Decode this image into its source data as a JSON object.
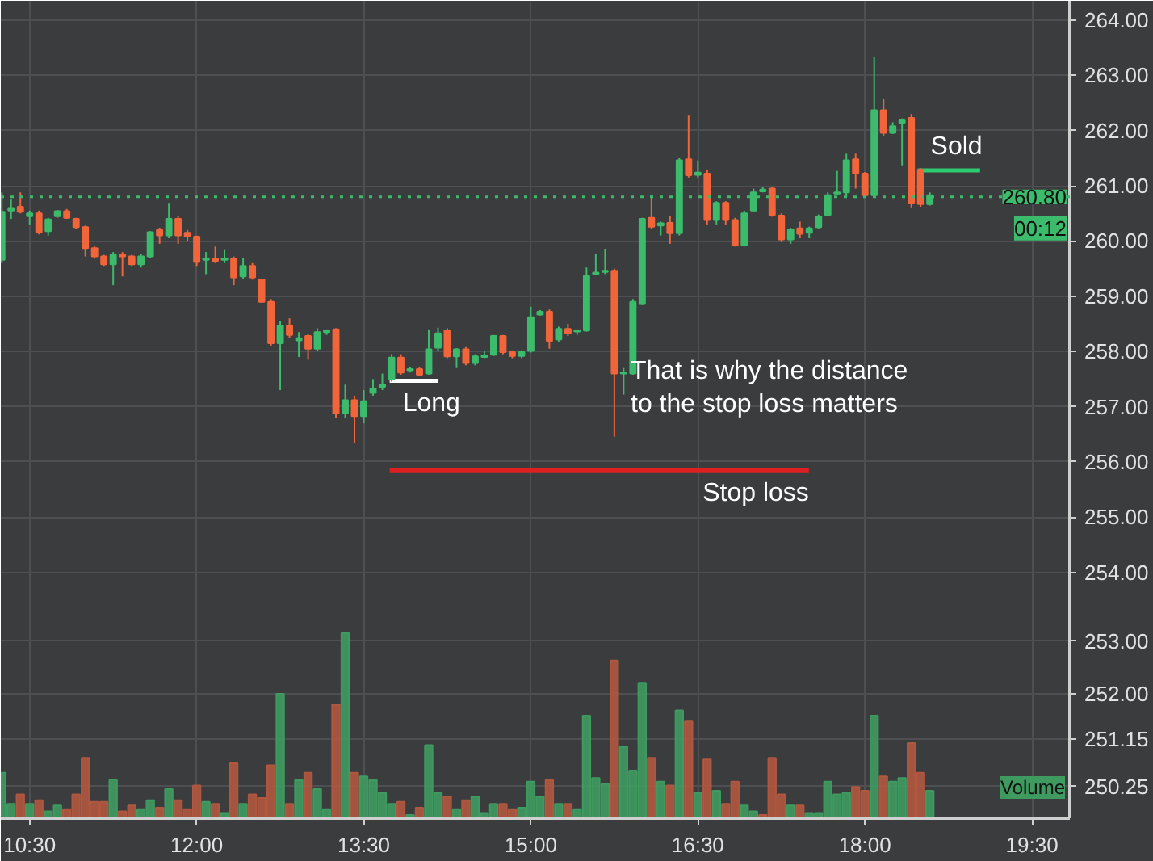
{
  "chart_data": {
    "type": "candlestick",
    "x": [
      10.25,
      10.3333,
      10.4167,
      10.5,
      10.5833,
      10.6667,
      10.75,
      10.8333,
      10.9167,
      11,
      11.0833,
      11.1667,
      11.25,
      11.3333,
      11.4167,
      11.5,
      11.5833,
      11.6667,
      11.75,
      11.8333,
      11.9167,
      12,
      12.0833,
      12.1667,
      12.25,
      12.3333,
      12.4167,
      12.5,
      12.5833,
      12.6667,
      12.75,
      12.8333,
      12.9167,
      13,
      13.0833,
      13.1667,
      13.25,
      13.3333,
      13.4167,
      13.5,
      13.5833,
      13.6667,
      13.75,
      13.8333,
      13.9167,
      14,
      14.0833,
      14.1667,
      14.25,
      14.3333,
      14.4167,
      14.5,
      14.5833,
      14.6667,
      14.75,
      14.8333,
      14.9167,
      15,
      15.0833,
      15.1667,
      15.25,
      15.3333,
      15.4167,
      15.5,
      15.5833,
      15.6667,
      15.75,
      15.8333,
      15.9167,
      16,
      16.0833,
      16.1667,
      16.25,
      16.3333,
      16.4167,
      16.5,
      16.5833,
      16.6667,
      16.75,
      16.8333,
      16.9167,
      17,
      17.0833,
      17.1667,
      17.25,
      17.3333,
      17.4167,
      17.5,
      17.5833,
      17.6667,
      17.75,
      17.8333,
      17.9167,
      18,
      18.0833,
      18.1667,
      18.25,
      18.3333,
      18.4167,
      18.5,
      18.5833
    ],
    "ohlc": [
      [
        259.66,
        260.88,
        259.6,
        260.53
      ],
      [
        260.55,
        260.75,
        260.4,
        260.6
      ],
      [
        260.62,
        260.88,
        260.5,
        260.53
      ],
      [
        260.45,
        260.55,
        260.3,
        260.5
      ],
      [
        260.5,
        260.55,
        260.12,
        260.16
      ],
      [
        260.18,
        260.42,
        260.1,
        260.39
      ],
      [
        260.45,
        260.56,
        260.42,
        260.54
      ],
      [
        260.54,
        260.58,
        260.4,
        260.42
      ],
      [
        260.4,
        260.42,
        260.22,
        260.25
      ],
      [
        260.25,
        260.28,
        259.72,
        259.87
      ],
      [
        259.87,
        259.9,
        259.68,
        259.72
      ],
      [
        259.72,
        259.75,
        259.55,
        259.58
      ],
      [
        259.58,
        259.8,
        259.2,
        259.75
      ],
      [
        259.75,
        259.8,
        259.36,
        259.72
      ],
      [
        259.72,
        259.75,
        259.55,
        259.58
      ],
      [
        259.58,
        259.76,
        259.52,
        259.72
      ],
      [
        259.72,
        260.18,
        259.7,
        260.16
      ],
      [
        260.2,
        260.24,
        259.95,
        260.1
      ],
      [
        260.1,
        260.69,
        260.05,
        260.4
      ],
      [
        260.4,
        260.45,
        259.95,
        260.1
      ],
      [
        260.15,
        260.2,
        260.0,
        260.08
      ],
      [
        260.08,
        260.1,
        259.55,
        259.62
      ],
      [
        259.66,
        259.8,
        259.4,
        259.68
      ],
      [
        259.68,
        259.9,
        259.6,
        259.64
      ],
      [
        259.66,
        259.85,
        259.6,
        259.68
      ],
      [
        259.68,
        259.72,
        259.2,
        259.34
      ],
      [
        259.36,
        259.7,
        259.32,
        259.55
      ],
      [
        259.55,
        259.6,
        259.3,
        259.34
      ],
      [
        259.3,
        259.32,
        258.88,
        258.9
      ],
      [
        258.9,
        258.95,
        258.1,
        258.15
      ],
      [
        258.15,
        258.55,
        257.3,
        258.47
      ],
      [
        258.47,
        258.6,
        258.25,
        258.3
      ],
      [
        258.2,
        258.35,
        257.9,
        258.24
      ],
      [
        258.28,
        258.32,
        257.85,
        258.05
      ],
      [
        258.05,
        258.42,
        258.0,
        258.35
      ],
      [
        258.35,
        258.4,
        258.3,
        258.38
      ],
      [
        258.4,
        258.42,
        256.8,
        256.88
      ],
      [
        256.88,
        257.4,
        256.8,
        257.12
      ],
      [
        257.12,
        257.2,
        256.35,
        256.83
      ],
      [
        256.83,
        257.3,
        256.7,
        257.1
      ],
      [
        257.25,
        257.5,
        257.2,
        257.33
      ],
      [
        257.36,
        257.6,
        257.3,
        257.4
      ],
      [
        257.5,
        257.95,
        257.45,
        257.89
      ],
      [
        257.89,
        257.95,
        257.58,
        257.62
      ],
      [
        257.66,
        257.72,
        257.62,
        257.68
      ],
      [
        257.68,
        257.72,
        257.55,
        257.58
      ],
      [
        257.6,
        258.4,
        257.58,
        258.04
      ],
      [
        258.07,
        258.43,
        258.0,
        258.33
      ],
      [
        258.38,
        258.42,
        257.88,
        257.91
      ],
      [
        257.91,
        258.06,
        257.7,
        258.04
      ],
      [
        258.04,
        258.08,
        257.75,
        257.79
      ],
      [
        257.79,
        257.95,
        257.75,
        257.91
      ],
      [
        257.9,
        258.0,
        257.88,
        257.93
      ],
      [
        257.94,
        258.3,
        257.92,
        258.28
      ],
      [
        258.28,
        258.3,
        257.95,
        257.99
      ],
      [
        257.99,
        258.02,
        257.88,
        257.92
      ],
      [
        257.92,
        258.02,
        257.88,
        257.99
      ],
      [
        258.01,
        258.81,
        257.98,
        258.62
      ],
      [
        258.67,
        258.75,
        258.65,
        258.72
      ],
      [
        258.72,
        258.76,
        258.05,
        258.19
      ],
      [
        258.22,
        258.45,
        258.18,
        258.41
      ],
      [
        258.41,
        258.5,
        258.28,
        258.33
      ],
      [
        258.36,
        258.4,
        258.3,
        258.38
      ],
      [
        258.38,
        259.52,
        258.36,
        259.37
      ],
      [
        259.4,
        259.76,
        259.38,
        259.43
      ],
      [
        259.44,
        259.86,
        259.4,
        259.46
      ],
      [
        259.46,
        259.5,
        256.46,
        257.6
      ],
      [
        257.6,
        257.7,
        257.22,
        257.62
      ],
      [
        257.6,
        258.95,
        257.58,
        258.9
      ],
      [
        258.86,
        260.42,
        258.84,
        260.4
      ],
      [
        260.42,
        260.83,
        260.22,
        260.26
      ],
      [
        260.28,
        260.35,
        260.1,
        260.32
      ],
      [
        260.33,
        260.45,
        259.95,
        260.14
      ],
      [
        260.14,
        261.5,
        260.1,
        261.46
      ],
      [
        261.48,
        262.27,
        261.15,
        261.19
      ],
      [
        261.2,
        261.46,
        261.15,
        261.24
      ],
      [
        261.22,
        261.28,
        260.3,
        260.38
      ],
      [
        260.38,
        260.72,
        260.3,
        260.69
      ],
      [
        260.69,
        260.72,
        260.3,
        260.38
      ],
      [
        260.38,
        260.42,
        259.9,
        259.92
      ],
      [
        259.92,
        260.55,
        259.9,
        260.5
      ],
      [
        260.55,
        260.95,
        260.52,
        260.88
      ],
      [
        260.9,
        260.98,
        260.88,
        260.93
      ],
      [
        260.95,
        260.98,
        260.44,
        260.47
      ],
      [
        260.46,
        260.5,
        259.98,
        260.03
      ],
      [
        260.03,
        260.24,
        259.95,
        260.21
      ],
      [
        260.23,
        260.35,
        260.05,
        260.13
      ],
      [
        260.15,
        260.26,
        260.05,
        260.23
      ],
      [
        260.25,
        260.48,
        260.22,
        260.44
      ],
      [
        260.47,
        260.88,
        260.45,
        260.83
      ],
      [
        260.86,
        261.27,
        260.84,
        260.88
      ],
      [
        260.88,
        261.58,
        260.8,
        261.46
      ],
      [
        261.48,
        261.58,
        260.95,
        261.22
      ],
      [
        261.22,
        261.25,
        260.8,
        260.83
      ],
      [
        260.83,
        263.34,
        260.8,
        262.37
      ],
      [
        262.37,
        262.57,
        261.9,
        261.96
      ],
      [
        261.96,
        262.15,
        261.94,
        262.08
      ],
      [
        262.14,
        262.22,
        261.37,
        262.2
      ],
      [
        262.23,
        262.3,
        260.61,
        260.69
      ],
      [
        261.29,
        261.32,
        260.62,
        260.67
      ],
      [
        260.67,
        260.88,
        260.64,
        260.83
      ]
    ],
    "colors": [
      "#3dbb6c",
      "#3dbb6c",
      "#f2653a",
      "#3dbb6c",
      "#f2653a",
      "#3dbb6c",
      "#3dbb6c",
      "#f2653a",
      "#f2653a",
      "#f2653a",
      "#f2653a",
      "#f2653a",
      "#3dbb6c",
      "#f2653a",
      "#f2653a",
      "#3dbb6c",
      "#3dbb6c",
      "#f2653a",
      "#3dbb6c",
      "#f2653a",
      "#f2653a",
      "#f2653a",
      "#3dbb6c",
      "#f2653a",
      "#3dbb6c",
      "#f2653a",
      "#3dbb6c",
      "#f2653a",
      "#f2653a",
      "#f2653a",
      "#3dbb6c",
      "#f2653a",
      "#3dbb6c",
      "#f2653a",
      "#3dbb6c",
      "#3dbb6c",
      "#f2653a",
      "#3dbb6c",
      "#f2653a",
      "#3dbb6c",
      "#3dbb6c",
      "#3dbb6c",
      "#3dbb6c",
      "#f2653a",
      "#3dbb6c",
      "#f2653a",
      "#3dbb6c",
      "#3dbb6c",
      "#f2653a",
      "#3dbb6c",
      "#f2653a",
      "#3dbb6c",
      "#3dbb6c",
      "#3dbb6c",
      "#f2653a",
      "#f2653a",
      "#3dbb6c",
      "#3dbb6c",
      "#3dbb6c",
      "#f2653a",
      "#3dbb6c",
      "#f2653a",
      "#3dbb6c",
      "#3dbb6c",
      "#3dbb6c",
      "#3dbb6c",
      "#f2653a",
      "#3dbb6c",
      "#3dbb6c",
      "#3dbb6c",
      "#f2653a",
      "#3dbb6c",
      "#f2653a",
      "#3dbb6c",
      "#f2653a",
      "#3dbb6c",
      "#f2653a",
      "#3dbb6c",
      "#f2653a",
      "#f2653a",
      "#3dbb6c",
      "#3dbb6c",
      "#3dbb6c",
      "#f2653a",
      "#f2653a",
      "#3dbb6c",
      "#f2653a",
      "#3dbb6c",
      "#3dbb6c",
      "#3dbb6c",
      "#3dbb6c",
      "#3dbb6c",
      "#f2653a",
      "#f2653a",
      "#3dbb6c",
      "#f2653a",
      "#3dbb6c",
      "#3dbb6c",
      "#f2653a",
      "#f2653a",
      "#3dbb6c"
    ],
    "xlim": [
      10.241,
      19.84
    ],
    "xticks": [
      {
        "value": 10.5,
        "label": "10:30"
      },
      {
        "value": 12,
        "label": "12:00"
      },
      {
        "value": 13.5,
        "label": "13:30"
      },
      {
        "value": 15,
        "label": "15:00"
      },
      {
        "value": 16.5,
        "label": "16:30"
      },
      {
        "value": 18,
        "label": "18:00"
      },
      {
        "value": 19.5,
        "label": "19:30"
      }
    ],
    "ylim": [
      249.55,
      264.35
    ],
    "yticks": [
      {
        "value": 254,
        "label": "254.00"
      },
      {
        "value": 255,
        "label": "255.00"
      },
      {
        "value": 256,
        "label": "256.00"
      },
      {
        "value": 257,
        "label": "257.00"
      },
      {
        "value": 258,
        "label": "258.00"
      },
      {
        "value": 259,
        "label": "259.00"
      },
      {
        "value": 260,
        "label": "260.00"
      },
      {
        "value": 261,
        "label": "261.00"
      },
      {
        "value": 262,
        "label": "262.00"
      },
      {
        "value": 263,
        "label": "263.00"
      },
      {
        "value": 264,
        "label": "264.00"
      }
    ],
    "y2lim": [
      249.65,
      265.1
    ],
    "y2ticks": [
      {
        "value": 250.25,
        "label": "250.25"
      },
      {
        "value": 251.15,
        "label": "251.15"
      },
      {
        "value": 252,
        "label": "252.00"
      },
      {
        "value": 253,
        "label": "253.00"
      }
    ],
    "grid": true,
    "ref_lines": [
      {
        "axis": "y",
        "value": 260.8,
        "label": "260.80",
        "color": "#3dbb6c",
        "line_style": "dotted"
      }
    ],
    "series": [
      {
        "type": "bar",
        "name": "Volume",
        "axis": "y2",
        "color": "#3f9a60",
        "values": [
          250.51,
          249.92,
          250.1,
          249.92,
          249.99,
          249.78,
          249.89,
          249.82,
          250.1,
          250.79,
          249.96,
          249.96,
          250.37,
          249.78,
          249.89,
          249.82,
          249.99,
          249.85,
          250.2,
          249.99,
          249.82,
          250.27,
          249.96,
          249.92,
          249.75,
          250.69,
          249.92,
          250.1,
          250.03,
          250.65,
          252.0,
          249.92,
          250.37,
          250.51,
          250.2,
          249.82,
          251.8,
          253.15,
          250.51,
          250.44,
          250.37,
          250.13,
          249.92,
          249.96,
          249.71,
          249.85,
          251.03,
          250.13,
          250.06,
          249.82,
          249.99,
          250.06,
          249.75,
          249.92,
          249.92,
          249.82,
          249.85,
          250.34,
          250.06,
          250.37,
          249.92,
          249.92,
          249.82,
          251.59,
          250.41,
          250.3,
          252.63,
          251.0,
          250.55,
          252.21,
          250.79,
          250.34,
          250.27,
          251.69,
          251.48,
          250.13,
          250.76,
          250.17,
          249.92,
          250.34,
          249.89,
          249.78,
          249.71,
          250.79,
          250.1,
          249.89,
          249.89,
          249.75,
          249.75,
          250.34,
          250.1,
          250.13,
          250.24,
          250.17,
          251.59,
          250.44,
          250.34,
          250.41,
          251.07,
          250.51,
          250.17
        ],
        "colors": [
          "#3f9a60",
          "#3f9a60",
          "#b0573f",
          "#3f9a60",
          "#b0573f",
          "#3f9a60",
          "#3f9a60",
          "#b0573f",
          "#b0573f",
          "#b0573f",
          "#b0573f",
          "#b0573f",
          "#3f9a60",
          "#b0573f",
          "#b0573f",
          "#3f9a60",
          "#3f9a60",
          "#b0573f",
          "#3f9a60",
          "#b0573f",
          "#b0573f",
          "#b0573f",
          "#3f9a60",
          "#b0573f",
          "#3f9a60",
          "#b0573f",
          "#3f9a60",
          "#b0573f",
          "#b0573f",
          "#b0573f",
          "#3f9a60",
          "#b0573f",
          "#3f9a60",
          "#b0573f",
          "#3f9a60",
          "#3f9a60",
          "#b0573f",
          "#3f9a60",
          "#b0573f",
          "#3f9a60",
          "#3f9a60",
          "#3f9a60",
          "#3f9a60",
          "#b0573f",
          "#3f9a60",
          "#b0573f",
          "#3f9a60",
          "#3f9a60",
          "#b0573f",
          "#3f9a60",
          "#b0573f",
          "#3f9a60",
          "#3f9a60",
          "#3f9a60",
          "#b0573f",
          "#b0573f",
          "#3f9a60",
          "#3f9a60",
          "#3f9a60",
          "#b0573f",
          "#3f9a60",
          "#b0573f",
          "#3f9a60",
          "#3f9a60",
          "#3f9a60",
          "#3f9a60",
          "#b0573f",
          "#3f9a60",
          "#3f9a60",
          "#3f9a60",
          "#b0573f",
          "#3f9a60",
          "#b0573f",
          "#3f9a60",
          "#b0573f",
          "#3f9a60",
          "#b0573f",
          "#3f9a60",
          "#b0573f",
          "#b0573f",
          "#3f9a60",
          "#3f9a60",
          "#b0573f",
          "#b0573f",
          "#b0573f",
          "#3f9a60",
          "#b0573f",
          "#3f9a60",
          "#3f9a60",
          "#3f9a60",
          "#3f9a60",
          "#3f9a60",
          "#b0573f",
          "#b0573f",
          "#3f9a60",
          "#b0573f",
          "#3f9a60",
          "#3f9a60",
          "#b0573f",
          "#b0573f",
          "#3f9a60"
        ]
      },
      {
        "type": "line",
        "name": "Long",
        "color": "#ffffff",
        "x": [
          13.733,
          14.164
        ],
        "values": [
          257.47,
          257.47
        ]
      },
      {
        "type": "line",
        "name": "Sold",
        "color": "#2ecc71",
        "x": [
          18.474,
          19.034
        ],
        "values": [
          261.28,
          261.28
        ]
      },
      {
        "type": "line",
        "name": "Stop loss",
        "color": "#e02020",
        "x": [
          13.733,
          17.497
        ],
        "values": [
          255.85,
          255.85
        ]
      }
    ],
    "annotations": [
      "00:12",
      "That is why the distance to the stop loss matters"
    ]
  }
}
